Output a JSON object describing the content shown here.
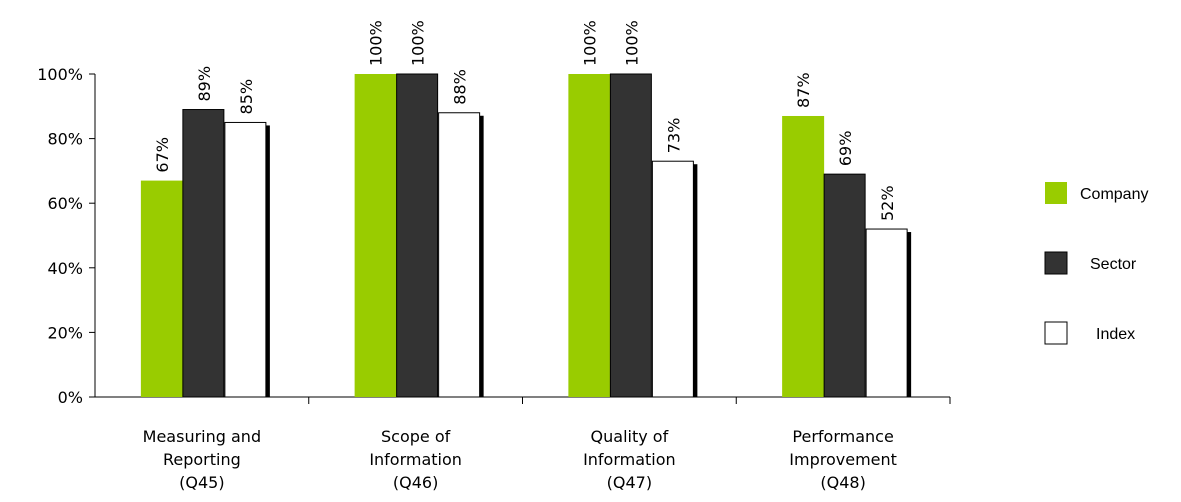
{
  "chart_data": {
    "type": "bar",
    "categories": [
      [
        "Measuring and",
        "Reporting",
        "(Q45)"
      ],
      [
        "Scope of",
        "Information",
        "(Q46)"
      ],
      [
        "Quality of",
        "Information",
        "(Q47)"
      ],
      [
        "Performance",
        "Improvement",
        "(Q48)"
      ]
    ],
    "series": [
      {
        "name": "Company",
        "values": [
          67,
          100,
          100,
          87
        ],
        "labels": [
          "67%",
          "100%",
          "100%",
          "87%"
        ],
        "color": "#99cc00"
      },
      {
        "name": "Sector",
        "values": [
          89,
          100,
          100,
          69
        ],
        "labels": [
          "89%",
          "100%",
          "100%",
          "69%"
        ],
        "color": "#333333"
      },
      {
        "name": "Index",
        "values": [
          85,
          88,
          73,
          52
        ],
        "labels": [
          "85%",
          "88%",
          "73%",
          "52%"
        ],
        "color": "#ffffff"
      }
    ],
    "y_ticks": [
      0,
      20,
      40,
      60,
      80,
      100
    ],
    "y_tick_labels": [
      "0%",
      "20%",
      "40%",
      "60%",
      "80%",
      "100%"
    ],
    "ylim": [
      0,
      100
    ],
    "legend_position": "right",
    "grid": false
  }
}
